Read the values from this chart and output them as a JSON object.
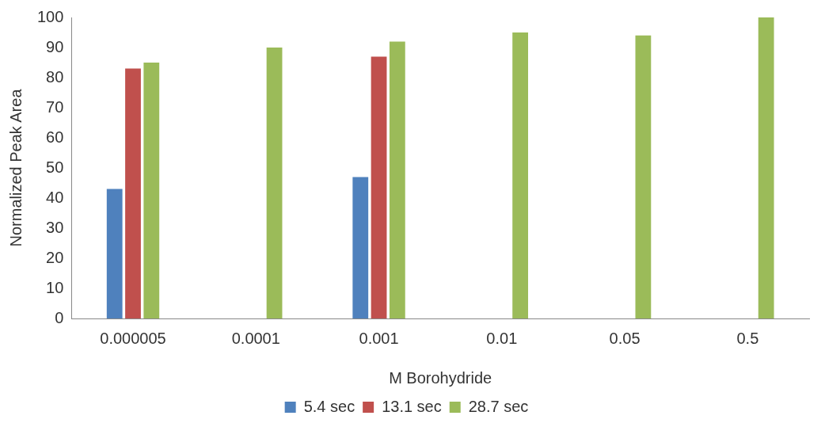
{
  "chart_data": {
    "type": "bar",
    "xlabel": "M Borohydride",
    "ylabel": "Normalized Peak Area",
    "categories": [
      "0.000005",
      "0.0001",
      "0.001",
      "0.01",
      "0.05",
      "0.5"
    ],
    "series": [
      {
        "name": "5.4 sec",
        "color": "#4f81bd",
        "values": [
          43,
          null,
          47,
          null,
          null,
          null
        ]
      },
      {
        "name": "13.1 sec",
        "color": "#c0504d",
        "values": [
          83,
          null,
          87,
          null,
          null,
          null
        ]
      },
      {
        "name": "28.7 sec",
        "color": "#9bbb59",
        "values": [
          85,
          90,
          92,
          95,
          94,
          100
        ]
      }
    ],
    "ylim": [
      0,
      100
    ],
    "yticks": [
      0,
      10,
      20,
      30,
      40,
      50,
      60,
      70,
      80,
      90,
      100
    ],
    "grid": false,
    "legend": "bottom"
  }
}
